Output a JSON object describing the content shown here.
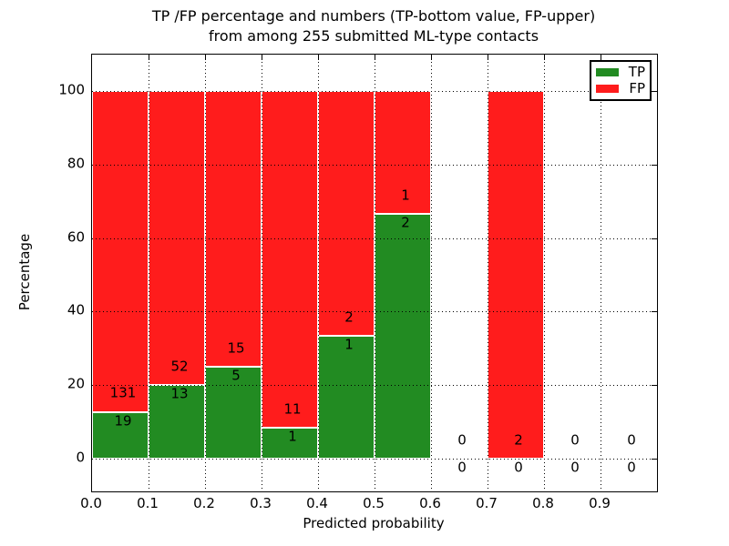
{
  "title": {
    "line1": "TP /FP percentage and numbers (TP-bottom value, FP-upper)",
    "line2": "from among 255 submitted ML-type contacts"
  },
  "axes": {
    "xlabel": "Predicted probability",
    "ylabel": "Percentage",
    "x_tick_labels": [
      "0.0",
      "0.1",
      "0.2",
      "0.3",
      "0.4",
      "0.5",
      "0.6",
      "0.7",
      "0.8",
      "0.9"
    ],
    "y_tick_labels": [
      "0",
      "20",
      "40",
      "60",
      "80",
      "100"
    ]
  },
  "legend": {
    "items": [
      {
        "label": "TP",
        "color": "#228b22"
      },
      {
        "label": "FP",
        "color": "#ff1c1c"
      }
    ]
  },
  "colors": {
    "tp": "#228b22",
    "fp": "#ff1c1c",
    "grid": "#000000",
    "background": "#ffffff"
  },
  "chart_data": {
    "type": "bar",
    "stacked": true,
    "normalized": "each bin scaled to 100%",
    "title": "TP /FP percentage and numbers (TP-bottom value, FP-upper) from among 255 submitted ML-type contacts",
    "xlabel": "Predicted probability",
    "ylabel": "Percentage",
    "xlim": [
      0.0,
      1.0
    ],
    "ylim": [
      -9,
      110
    ],
    "x_ticks": [
      0.0,
      0.1,
      0.2,
      0.3,
      0.4,
      0.5,
      0.6,
      0.7,
      0.8,
      0.9
    ],
    "y_ticks": [
      0,
      20,
      40,
      60,
      80,
      100
    ],
    "grid": "dotted, drawn above bars",
    "legend_position": "upper right",
    "bin_width": 0.1,
    "series": [
      {
        "name": "TP",
        "color": "#228b22",
        "position": "bottom"
      },
      {
        "name": "FP",
        "color": "#ff1c1c",
        "position": "top"
      }
    ],
    "bins": [
      {
        "x_start": 0.0,
        "tp_count": 19,
        "fp_count": 131,
        "tp_pct": 12.67,
        "fp_pct": 87.33
      },
      {
        "x_start": 0.1,
        "tp_count": 13,
        "fp_count": 52,
        "tp_pct": 20.0,
        "fp_pct": 80.0
      },
      {
        "x_start": 0.2,
        "tp_count": 5,
        "fp_count": 15,
        "tp_pct": 25.0,
        "fp_pct": 75.0
      },
      {
        "x_start": 0.3,
        "tp_count": 1,
        "fp_count": 11,
        "tp_pct": 8.33,
        "fp_pct": 91.67
      },
      {
        "x_start": 0.4,
        "tp_count": 1,
        "fp_count": 2,
        "tp_pct": 33.33,
        "fp_pct": 66.67
      },
      {
        "x_start": 0.5,
        "tp_count": 2,
        "fp_count": 1,
        "tp_pct": 66.67,
        "fp_pct": 33.33
      },
      {
        "x_start": 0.6,
        "tp_count": 0,
        "fp_count": 0,
        "tp_pct": 0,
        "fp_pct": 0
      },
      {
        "x_start": 0.7,
        "tp_count": 0,
        "fp_count": 2,
        "tp_pct": 0,
        "fp_pct": 100.0
      },
      {
        "x_start": 0.8,
        "tp_count": 0,
        "fp_count": 0,
        "tp_pct": 0,
        "fp_pct": 0
      },
      {
        "x_start": 0.9,
        "tp_count": 0,
        "fp_count": 0,
        "tp_pct": 0,
        "fp_pct": 0
      }
    ],
    "label_rules": {
      "fp_label_value_offset": 5,
      "tp_label_value_offset": -2.5
    }
  }
}
